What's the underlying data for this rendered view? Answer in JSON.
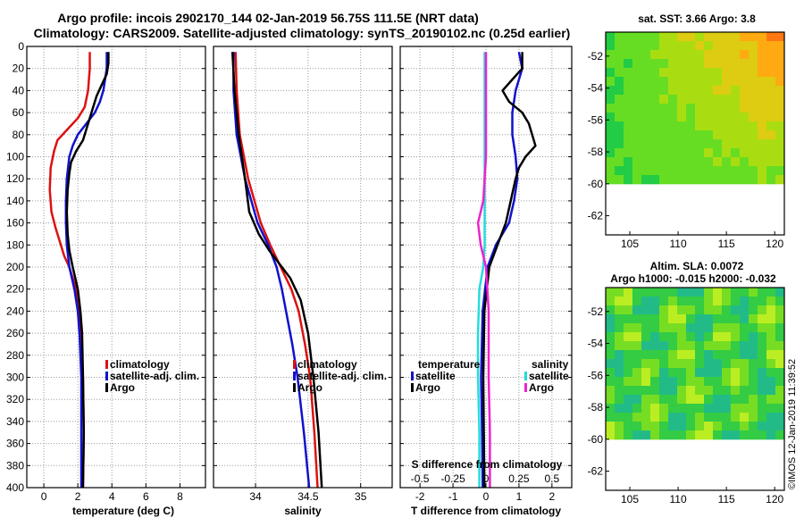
{
  "title": {
    "line1": "Argo profile: incois 2902170_144 02-Jan-2019 56.75S 111.5E (NRT data)",
    "line2": "Climatology: CARS2009. Satellite-adjusted climatology: synTS_20190102.nc (0.25d earlier)"
  },
  "colors": {
    "climatology": "#dd1111",
    "satellite": "#1111cc",
    "argo": "#000000",
    "sal_sat": "#22dddd",
    "sal_argo": "#ee22cc"
  },
  "stamp": "©IMOS 12-Jan-2019 11:39:52",
  "chart_data": [
    {
      "id": "temperature",
      "type": "line",
      "xlabel": "temperature (deg C)",
      "xlim": [
        -1,
        9.5
      ],
      "xticks": [
        0,
        2,
        4,
        6,
        8
      ],
      "xtick_labels": [
        "0",
        "2",
        "4",
        "6",
        "8"
      ],
      "ylim": [
        400,
        0
      ],
      "yticks": [
        0,
        20,
        40,
        60,
        80,
        100,
        120,
        140,
        160,
        180,
        200,
        220,
        240,
        260,
        280,
        300,
        320,
        340,
        360,
        380,
        400
      ],
      "grid": true,
      "legend": {
        "position": "center-right",
        "entries": [
          "climatology",
          "satellite-adj. clim.",
          "Argo"
        ]
      },
      "series": [
        {
          "name": "climatology",
          "color": "#dd1111",
          "depth": [
            5,
            20,
            40,
            55,
            65,
            75,
            85,
            95,
            110,
            130,
            150,
            165,
            180,
            190,
            200,
            220,
            240,
            260,
            300,
            350,
            400
          ],
          "values": [
            2.7,
            2.7,
            2.6,
            2.4,
            2.0,
            1.4,
            0.8,
            0.6,
            0.4,
            0.35,
            0.45,
            0.7,
            1.0,
            1.2,
            1.5,
            1.9,
            2.1,
            2.2,
            2.3,
            2.35,
            2.3
          ]
        },
        {
          "name": "satellite-adj. clim.",
          "color": "#1111cc",
          "depth": [
            5,
            20,
            30,
            40,
            50,
            60,
            70,
            80,
            90,
            100,
            120,
            140,
            160,
            180,
            200,
            220,
            240,
            260,
            300,
            350,
            400
          ],
          "values": [
            3.7,
            3.7,
            3.6,
            3.5,
            3.3,
            3.0,
            2.5,
            2.0,
            1.7,
            1.5,
            1.35,
            1.3,
            1.3,
            1.35,
            1.5,
            1.8,
            2.0,
            2.1,
            2.2,
            2.2,
            2.2
          ]
        },
        {
          "name": "Argo",
          "color": "#000000",
          "depth": [
            5,
            15,
            25,
            35,
            45,
            55,
            65,
            75,
            85,
            95,
            105,
            115,
            130,
            150,
            170,
            185,
            200,
            220,
            240,
            260,
            300,
            350,
            400
          ],
          "values": [
            3.8,
            3.8,
            3.7,
            3.4,
            3.1,
            2.9,
            2.7,
            2.5,
            2.3,
            1.9,
            1.6,
            1.5,
            1.4,
            1.35,
            1.4,
            1.5,
            1.7,
            2.0,
            2.15,
            2.25,
            2.3,
            2.35,
            2.3
          ]
        }
      ]
    },
    {
      "id": "salinity",
      "type": "line",
      "xlabel": "salinity",
      "xlim": [
        33.6,
        35.3
      ],
      "xticks": [
        34,
        34.5,
        35
      ],
      "xtick_labels": [
        "34",
        "34.5",
        "35"
      ],
      "ylim": [
        400,
        0
      ],
      "grid": true,
      "legend": {
        "position": "center-right",
        "entries": [
          "climatology",
          "satellite-adj. clim.",
          "Argo"
        ]
      },
      "series": [
        {
          "name": "climatology",
          "color": "#dd1111",
          "depth": [
            5,
            40,
            80,
            120,
            160,
            180,
            200,
            220,
            240,
            270,
            300,
            350,
            400
          ],
          "values": [
            33.81,
            33.82,
            33.85,
            33.93,
            34.05,
            34.14,
            34.24,
            34.34,
            34.41,
            34.47,
            34.52,
            34.56,
            34.59
          ]
        },
        {
          "name": "satellite-adj. clim.",
          "color": "#1111cc",
          "depth": [
            5,
            40,
            80,
            120,
            160,
            180,
            200,
            220,
            240,
            270,
            300,
            350,
            400
          ],
          "values": [
            33.79,
            33.79,
            33.82,
            33.9,
            34.02,
            34.12,
            34.2,
            34.25,
            34.29,
            34.35,
            34.4,
            34.46,
            34.51
          ]
        },
        {
          "name": "Argo",
          "color": "#000000",
          "depth": [
            5,
            40,
            80,
            120,
            150,
            170,
            185,
            200,
            210,
            230,
            260,
            300,
            350,
            400
          ],
          "values": [
            33.78,
            33.8,
            33.84,
            33.9,
            33.94,
            34.03,
            34.13,
            34.25,
            34.33,
            34.43,
            34.5,
            34.55,
            34.6,
            34.63
          ]
        }
      ]
    },
    {
      "id": "difference",
      "type": "line",
      "xlabel": "T difference from climatology",
      "x2label": "S difference from climatology",
      "xlim": [
        -2.6,
        2.6
      ],
      "xticks": [
        -2,
        -1,
        0,
        1,
        2
      ],
      "xtick_labels": [
        "-2",
        "-1",
        "0",
        "1",
        "2"
      ],
      "x2ticks": [
        -0.5,
        -0.25,
        0,
        0.25,
        0.5
      ],
      "x2tick_labels": [
        "-0.5",
        "-0.25",
        "0",
        "0.25",
        "0.5"
      ],
      "x2_scale": 4,
      "ylim": [
        400,
        0
      ],
      "grid": true,
      "legend_temperature": {
        "heading": "temperature",
        "entries": [
          "satellite",
          "Argo"
        ]
      },
      "legend_salinity": {
        "heading": "salinity",
        "entries": [
          "satellite",
          "Argo"
        ]
      },
      "series": [
        {
          "name": "T satellite",
          "color": "#1111cc",
          "unit": "T",
          "depth": [
            5,
            20,
            40,
            60,
            80,
            90,
            100,
            120,
            140,
            160,
            180,
            200,
            240,
            300,
            350,
            400
          ],
          "values": [
            1.0,
            1.1,
            0.9,
            0.8,
            0.8,
            0.85,
            0.9,
            0.95,
            0.85,
            0.7,
            0.3,
            0.05,
            -0.1,
            -0.15,
            -0.12,
            -0.1
          ]
        },
        {
          "name": "T Argo",
          "color": "#000000",
          "unit": "T",
          "depth": [
            5,
            20,
            30,
            40,
            50,
            60,
            70,
            80,
            90,
            100,
            110,
            120,
            140,
            160,
            180,
            200,
            240,
            300,
            400
          ],
          "values": [
            1.1,
            1.1,
            0.8,
            0.5,
            0.7,
            1.1,
            1.3,
            1.4,
            1.5,
            1.2,
            1.0,
            0.9,
            0.75,
            0.6,
            0.35,
            0.1,
            -0.05,
            -0.08,
            -0.05
          ]
        },
        {
          "name": "S satellite",
          "color": "#22dddd",
          "unit": "S",
          "depth": [
            5,
            100,
            180,
            200,
            220,
            260,
            300,
            350,
            400
          ],
          "values": [
            -0.01,
            -0.01,
            -0.01,
            -0.02,
            -0.05,
            -0.06,
            -0.06,
            -0.05,
            -0.05
          ]
        },
        {
          "name": "S Argo",
          "color": "#ee22cc",
          "unit": "S",
          "depth": [
            5,
            100,
            140,
            160,
            180,
            200,
            240,
            300,
            350,
            400
          ],
          "values": [
            0.0,
            0.0,
            -0.02,
            -0.06,
            -0.04,
            0.0,
            0.02,
            0.02,
            0.03,
            0.03
          ]
        }
      ]
    },
    {
      "id": "sst_map",
      "type": "heatmap",
      "title": "sat. SST: 3.66 Argo: 3.8",
      "xlim": [
        102.5,
        121
      ],
      "ylim": [
        -63.2,
        -50.5
      ],
      "xticks": [
        105,
        110,
        115,
        120
      ],
      "xtick_labels": [
        "105",
        "110",
        "115",
        "120"
      ],
      "yticks": [
        -52,
        -54,
        -56,
        -58,
        -60,
        -62
      ],
      "ytick_labels": [
        "-52",
        "-54",
        "-56",
        "-58",
        "-60",
        "-62"
      ],
      "data_extent": {
        "lon": [
          102.5,
          121
        ],
        "lat": [
          -60,
          -50.5
        ]
      },
      "palette": [
        "#22cc44",
        "#66dd22",
        "#aadd11",
        "#ddcc11",
        "#ffaa11",
        "#ff7711"
      ]
    },
    {
      "id": "sla_map",
      "type": "heatmap",
      "title": "Altim. SLA: 0.0072",
      "subtitle": "Argo h1000: -0.015 h2000: -0.032",
      "xlim": [
        102.5,
        121
      ],
      "ylim": [
        -63.2,
        -50.5
      ],
      "xticks": [
        105,
        110,
        115,
        120
      ],
      "xtick_labels": [
        "105",
        "110",
        "115",
        "120"
      ],
      "yticks": [
        -52,
        -54,
        -56,
        -58,
        -60,
        -62
      ],
      "ytick_labels": [
        "-52",
        "-54",
        "-56",
        "-58",
        "-60",
        "-62"
      ],
      "data_extent": {
        "lon": [
          102.5,
          121
        ],
        "lat": [
          -60,
          -50.5
        ]
      },
      "palette": [
        "#22bb88",
        "#33cc44",
        "#77dd22",
        "#bbee22",
        "#ddee33"
      ]
    }
  ]
}
